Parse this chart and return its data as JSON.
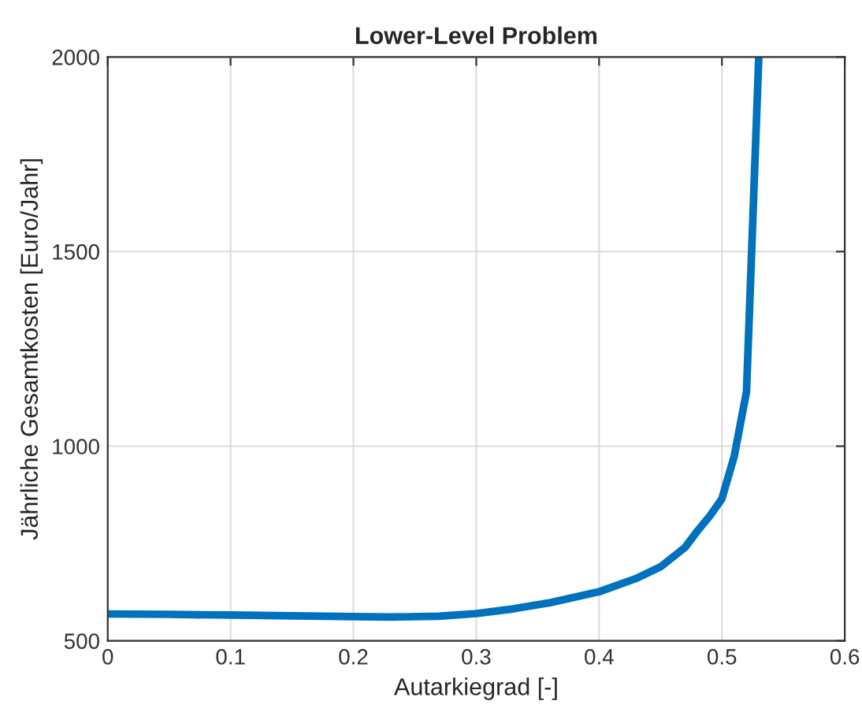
{
  "chart_data": {
    "type": "line",
    "title": "Lower-Level Problem",
    "xlabel": "Autarkiegrad [-]",
    "ylabel": "Jährliche Gesamtkosten [Euro/Jahr]",
    "series": [
      {
        "color": "#0072bd",
        "x": [
          0,
          0.05,
          0.1,
          0.15,
          0.2,
          0.23,
          0.27,
          0.3,
          0.33,
          0.36,
          0.4,
          0.43,
          0.45,
          0.47,
          0.48,
          0.49,
          0.5,
          0.51,
          0.52,
          0.53
        ],
        "values": [
          569,
          568,
          566,
          564,
          562,
          561,
          563,
          570,
          582,
          598,
          626,
          660,
          690,
          740,
          782,
          820,
          865,
          974,
          1140,
          2000
        ]
      }
    ],
    "xlim": [
      0,
      0.6
    ],
    "ylim": [
      500,
      2000
    ],
    "xticks": [
      0,
      0.1,
      0.2,
      0.3,
      0.4,
      0.5,
      0.6
    ],
    "yticks": [
      500,
      1000,
      1500,
      2000
    ],
    "grid": true
  }
}
